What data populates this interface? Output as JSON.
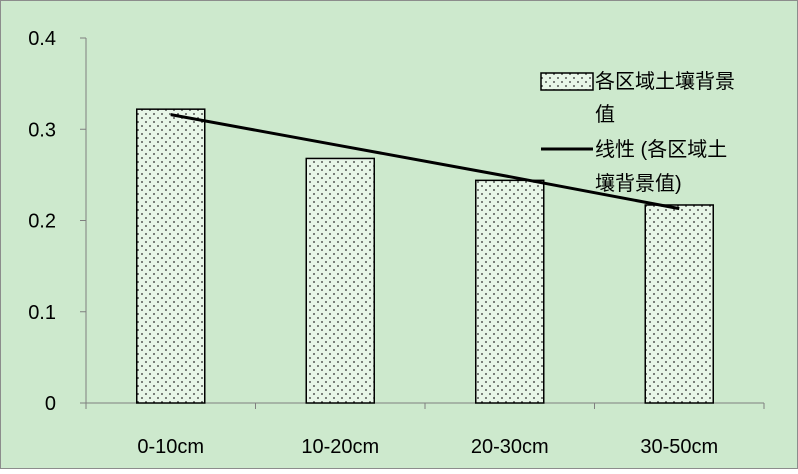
{
  "chart_data": {
    "type": "bar",
    "categories": [
      "0-10cm",
      "10-20cm",
      "20-30cm",
      "30-50cm"
    ],
    "series": [
      {
        "name": "各区域土壤背景值",
        "values": [
          0.322,
          0.268,
          0.244,
          0.217
        ]
      }
    ],
    "trendline": {
      "name": "线性 (各区域土壤背景值)",
      "type": "linear",
      "values": [
        0.316,
        0.282,
        0.248,
        0.213
      ]
    },
    "y_ticks": [
      "0",
      "0.1",
      "0.2",
      "0.3",
      "0.4"
    ],
    "ylim": [
      0,
      0.4
    ],
    "legend_position": "right",
    "legend": {
      "bar_label_lines": [
        "各区域土壤背景",
        "值"
      ],
      "line_label_lines": [
        "线性 (各区域土",
        "壤背景值)"
      ]
    },
    "grid": false,
    "colors": {
      "background": "#cde9cd",
      "bar_fill": "#e8f6e8",
      "bar_dots": "#2a2a2a",
      "outline": "#000000",
      "axis": "#7f7f7f",
      "border": "#8c8c8c"
    }
  }
}
